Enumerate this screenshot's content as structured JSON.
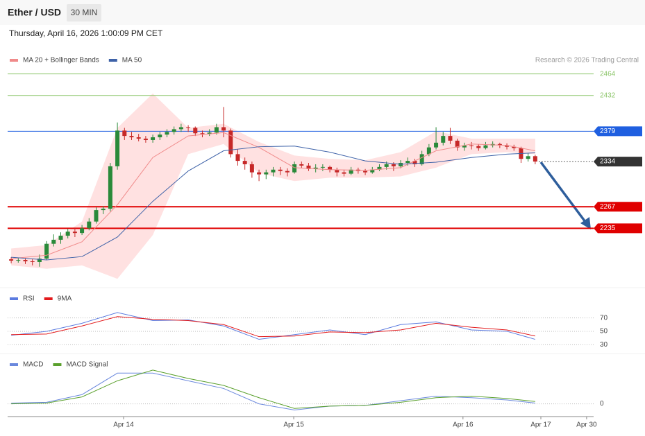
{
  "header": {
    "symbol": "Ether / USD",
    "interval": "30 MIN",
    "timestamp": "Thursday, April 16, 2026 1:00:09 PM CET",
    "credit": "Research © 2026 Trading Central"
  },
  "chart_data": [
    {
      "type": "candlestick",
      "up_color": "#2a8a3a",
      "down_color": "#c62828",
      "xlim": [
        0,
        82.75
      ],
      "xticks": [
        {
          "value": 16.37,
          "label": "Apr 14"
        },
        {
          "value": 40.4,
          "label": "Apr 15"
        },
        {
          "value": 64.3,
          "label": "Apr 16"
        },
        {
          "value": 75.3,
          "label": "Apr 17"
        },
        {
          "value": 81.76,
          "label": "Apr 30"
        }
      ],
      "ylim": [
        2150,
        2476
      ],
      "candles": [
        [
          2189,
          2192,
          2183,
          2187
        ],
        [
          2187,
          2191,
          2184,
          2188
        ],
        [
          2188,
          2190,
          2182,
          2186
        ],
        [
          2186,
          2189,
          2180,
          2185
        ],
        [
          2185,
          2196,
          2178,
          2190
        ],
        [
          2190,
          2216,
          2188,
          2212
        ],
        [
          2212,
          2226,
          2208,
          2218
        ],
        [
          2218,
          2229,
          2212,
          2224
        ],
        [
          2224,
          2234,
          2220,
          2230
        ],
        [
          2230,
          2236,
          2222,
          2228
        ],
        [
          2228,
          2240,
          2225,
          2235
        ],
        [
          2235,
          2250,
          2232,
          2245
        ],
        [
          2245,
          2266,
          2242,
          2262
        ],
        [
          2262,
          2268,
          2256,
          2264
        ],
        [
          2264,
          2332,
          2260,
          2327
        ],
        [
          2327,
          2392,
          2322,
          2380
        ],
        [
          2380,
          2384,
          2366,
          2372
        ],
        [
          2372,
          2378,
          2366,
          2370
        ],
        [
          2370,
          2375,
          2364,
          2368
        ],
        [
          2368,
          2372,
          2362,
          2366
        ],
        [
          2366,
          2374,
          2362,
          2370
        ],
        [
          2370,
          2378,
          2366,
          2374
        ],
        [
          2374,
          2382,
          2370,
          2378
        ],
        [
          2378,
          2386,
          2374,
          2382
        ],
        [
          2382,
          2390,
          2378,
          2385
        ],
        [
          2385,
          2388,
          2378,
          2384
        ],
        [
          2384,
          2386,
          2372,
          2376
        ],
        [
          2376,
          2380,
          2370,
          2375
        ],
        [
          2375,
          2382,
          2372,
          2377
        ],
        [
          2377,
          2390,
          2374,
          2385
        ],
        [
          2385,
          2415,
          2370,
          2380
        ],
        [
          2380,
          2383,
          2340,
          2345
        ],
        [
          2345,
          2352,
          2328,
          2335
        ],
        [
          2335,
          2340,
          2322,
          2330
        ],
        [
          2330,
          2334,
          2310,
          2318
        ],
        [
          2318,
          2322,
          2305,
          2315
        ],
        [
          2315,
          2322,
          2308,
          2318
        ],
        [
          2318,
          2326,
          2312,
          2322
        ],
        [
          2322,
          2326,
          2314,
          2320
        ],
        [
          2320,
          2324,
          2312,
          2318
        ],
        [
          2318,
          2334,
          2316,
          2330
        ],
        [
          2330,
          2334,
          2324,
          2328
        ],
        [
          2328,
          2332,
          2320,
          2323
        ],
        [
          2323,
          2330,
          2318,
          2325
        ],
        [
          2325,
          2330,
          2320,
          2326
        ],
        [
          2326,
          2328,
          2318,
          2322
        ],
        [
          2322,
          2325,
          2312,
          2318
        ],
        [
          2318,
          2322,
          2312,
          2316
        ],
        [
          2316,
          2326,
          2314,
          2322
        ],
        [
          2322,
          2325,
          2316,
          2320
        ],
        [
          2320,
          2323,
          2314,
          2318
        ],
        [
          2318,
          2326,
          2316,
          2322
        ],
        [
          2322,
          2330,
          2320,
          2326
        ],
        [
          2326,
          2334,
          2322,
          2330
        ],
        [
          2330,
          2333,
          2320,
          2327
        ],
        [
          2327,
          2336,
          2324,
          2332
        ],
        [
          2332,
          2340,
          2328,
          2335
        ],
        [
          2335,
          2338,
          2326,
          2330
        ],
        [
          2330,
          2350,
          2328,
          2345
        ],
        [
          2345,
          2360,
          2342,
          2355
        ],
        [
          2355,
          2385,
          2352,
          2362
        ],
        [
          2362,
          2378,
          2358,
          2372
        ],
        [
          2372,
          2384,
          2360,
          2365
        ],
        [
          2365,
          2368,
          2350,
          2355
        ],
        [
          2355,
          2362,
          2350,
          2358
        ],
        [
          2358,
          2363,
          2352,
          2357
        ],
        [
          2357,
          2360,
          2350,
          2354
        ],
        [
          2354,
          2363,
          2352,
          2358
        ],
        [
          2358,
          2364,
          2355,
          2360
        ],
        [
          2360,
          2362,
          2354,
          2358
        ],
        [
          2358,
          2361,
          2352,
          2356
        ],
        [
          2356,
          2359,
          2350,
          2354
        ],
        [
          2354,
          2356,
          2332,
          2338
        ],
        [
          2338,
          2346,
          2334,
          2342
        ],
        [
          2342,
          2344,
          2330,
          2334
        ]
      ],
      "x": [
        0.5,
        5.5,
        10.5,
        15.5,
        20.5,
        25.5,
        30.5,
        35.5,
        40.5,
        45.5,
        50.5,
        55.5,
        60.5,
        65.5,
        70.5,
        74.5
      ],
      "series": [
        {
          "name": "MA 20 + Bollinger Bands",
          "color": "#f08a8a",
          "band_color": "#ffd9d9",
          "values": [
            2190,
            2195,
            2215,
            2270,
            2340,
            2372,
            2377,
            2355,
            2325,
            2322,
            2321,
            2325,
            2350,
            2360,
            2358,
            2350
          ],
          "upper": [
            2205,
            2210,
            2245,
            2384,
            2435,
            2384,
            2390,
            2363,
            2343,
            2338,
            2336,
            2348,
            2379,
            2368,
            2368,
            2368
          ],
          "lower": [
            2180,
            2175,
            2180,
            2160,
            2225,
            2345,
            2360,
            2317,
            2305,
            2310,
            2310,
            2312,
            2325,
            2345,
            2348,
            2345
          ]
        },
        {
          "name": "MA 50",
          "color": "#3e62a8",
          "values": [
            2192,
            2188,
            2193,
            2222,
            2275,
            2320,
            2350,
            2356,
            2357,
            2348,
            2335,
            2330,
            2333,
            2340,
            2345,
            2347
          ]
        }
      ],
      "levels": [
        {
          "value": 2464,
          "color": "#8cc56a",
          "label_style": "text",
          "line": "solid"
        },
        {
          "value": 2432,
          "color": "#8cc56a",
          "label_style": "text",
          "line": "solid"
        },
        {
          "value": 2379,
          "color": "#1f5fe0",
          "label_style": "badge",
          "line": "solid"
        },
        {
          "value": 2334,
          "color": "#333333",
          "label_style": "badge",
          "line": "dotted"
        },
        {
          "value": 2267,
          "color": "#e00000",
          "label_style": "badge",
          "line": "solid"
        },
        {
          "value": 2235,
          "color": "#e00000",
          "label_style": "badge",
          "line": "solid"
        }
      ]
    },
    {
      "type": "line",
      "xlim": [
        0,
        82.75
      ],
      "ylim": [
        22,
        110
      ],
      "yticks": [
        30,
        50,
        70
      ],
      "x": [
        0.5,
        5.5,
        10.5,
        15.5,
        20.5,
        25.5,
        30.5,
        35.5,
        40.5,
        45.5,
        50.5,
        55.5,
        60.5,
        65.5,
        70.5,
        74.5
      ],
      "series": [
        {
          "name": "RSI",
          "color": "#5b7be0",
          "values": [
            44,
            50,
            62,
            78,
            66,
            67,
            58,
            38,
            45,
            52,
            45,
            60,
            64,
            52,
            50,
            38
          ]
        },
        {
          "name": "9MA",
          "color": "#e31a1c",
          "values": [
            45,
            46,
            58,
            72,
            68,
            66,
            60,
            42,
            43,
            49,
            48,
            52,
            62,
            56,
            52,
            43
          ]
        }
      ]
    },
    {
      "type": "line",
      "xlim": [
        0,
        82.75
      ],
      "ylim": [
        -13,
        61
      ],
      "yticks": [
        0
      ],
      "x": [
        0.5,
        5.5,
        10.5,
        15.5,
        20.5,
        25.5,
        30.5,
        35.5,
        40.5,
        45.5,
        50.5,
        55.5,
        60.5,
        65.5,
        70.5,
        74.5
      ],
      "series": [
        {
          "name": "MACD",
          "color": "#6a88dd",
          "values": [
            1,
            2,
            12,
            40,
            40,
            30,
            20,
            0,
            -8,
            -3,
            -2,
            4,
            10,
            8,
            5,
            1
          ]
        },
        {
          "name": "MACD Signal",
          "color": "#5aa02c",
          "values": [
            0,
            1,
            9,
            30,
            44,
            33,
            24,
            8,
            -6,
            -3,
            -2,
            2,
            8,
            10,
            7,
            3
          ]
        }
      ]
    }
  ]
}
